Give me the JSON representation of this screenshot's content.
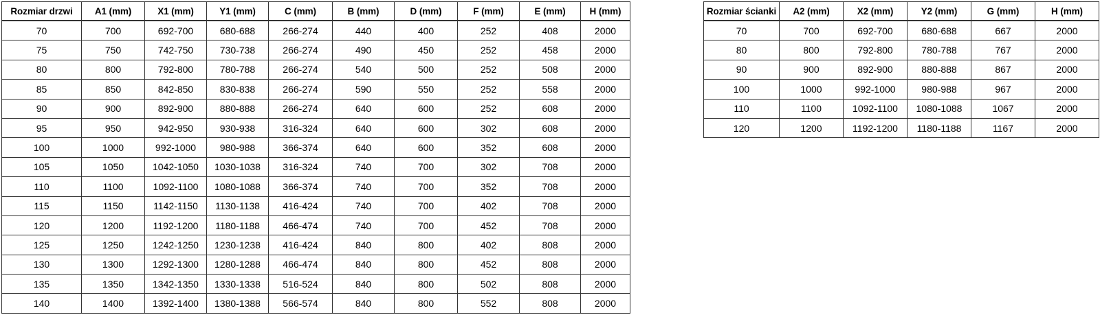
{
  "colors": {
    "background": "#ffffff",
    "text": "#000000",
    "border": "#333333"
  },
  "door_table": {
    "headers": [
      "Rozmiar drzwi",
      "A1 (mm)",
      "X1 (mm)",
      "Y1 (mm)",
      "C (mm)",
      "B (mm)",
      "D (mm)",
      "F (mm)",
      "E (mm)",
      "H (mm)"
    ],
    "rows": [
      [
        "70",
        "700",
        "692-700",
        "680-688",
        "266-274",
        "440",
        "400",
        "252",
        "408",
        "2000"
      ],
      [
        "75",
        "750",
        "742-750",
        "730-738",
        "266-274",
        "490",
        "450",
        "252",
        "458",
        "2000"
      ],
      [
        "80",
        "800",
        "792-800",
        "780-788",
        "266-274",
        "540",
        "500",
        "252",
        "508",
        "2000"
      ],
      [
        "85",
        "850",
        "842-850",
        "830-838",
        "266-274",
        "590",
        "550",
        "252",
        "558",
        "2000"
      ],
      [
        "90",
        "900",
        "892-900",
        "880-888",
        "266-274",
        "640",
        "600",
        "252",
        "608",
        "2000"
      ],
      [
        "95",
        "950",
        "942-950",
        "930-938",
        "316-324",
        "640",
        "600",
        "302",
        "608",
        "2000"
      ],
      [
        "100",
        "1000",
        "992-1000",
        "980-988",
        "366-374",
        "640",
        "600",
        "352",
        "608",
        "2000"
      ],
      [
        "105",
        "1050",
        "1042-1050",
        "1030-1038",
        "316-324",
        "740",
        "700",
        "302",
        "708",
        "2000"
      ],
      [
        "110",
        "1100",
        "1092-1100",
        "1080-1088",
        "366-374",
        "740",
        "700",
        "352",
        "708",
        "2000"
      ],
      [
        "115",
        "1150",
        "1142-1150",
        "1130-1138",
        "416-424",
        "740",
        "700",
        "402",
        "708",
        "2000"
      ],
      [
        "120",
        "1200",
        "1192-1200",
        "1180-1188",
        "466-474",
        "740",
        "700",
        "452",
        "708",
        "2000"
      ],
      [
        "125",
        "1250",
        "1242-1250",
        "1230-1238",
        "416-424",
        "840",
        "800",
        "402",
        "808",
        "2000"
      ],
      [
        "130",
        "1300",
        "1292-1300",
        "1280-1288",
        "466-474",
        "840",
        "800",
        "452",
        "808",
        "2000"
      ],
      [
        "135",
        "1350",
        "1342-1350",
        "1330-1338",
        "516-524",
        "840",
        "800",
        "502",
        "808",
        "2000"
      ],
      [
        "140",
        "1400",
        "1392-1400",
        "1380-1388",
        "566-574",
        "840",
        "800",
        "552",
        "808",
        "2000"
      ]
    ]
  },
  "wall_table": {
    "headers": [
      "Rozmiar ścianki",
      "A2 (mm)",
      "X2 (mm)",
      "Y2 (mm)",
      "G (mm)",
      "H (mm)"
    ],
    "rows": [
      [
        "70",
        "700",
        "692-700",
        "680-688",
        "667",
        "2000"
      ],
      [
        "80",
        "800",
        "792-800",
        "780-788",
        "767",
        "2000"
      ],
      [
        "90",
        "900",
        "892-900",
        "880-888",
        "867",
        "2000"
      ],
      [
        "100",
        "1000",
        "992-1000",
        "980-988",
        "967",
        "2000"
      ],
      [
        "110",
        "1100",
        "1092-1100",
        "1080-1088",
        "1067",
        "2000"
      ],
      [
        "120",
        "1200",
        "1192-1200",
        "1180-1188",
        "1167",
        "2000"
      ]
    ]
  }
}
